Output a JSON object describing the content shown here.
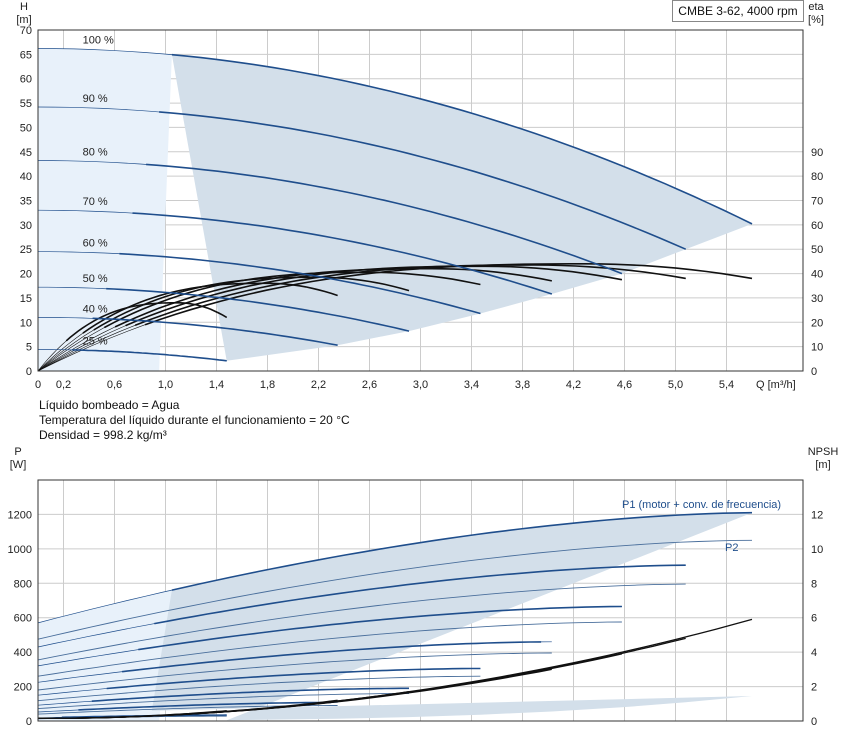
{
  "model_label": "CMBE 3-62, 4000 rpm",
  "notes": {
    "liquid": "Líquido bombeado = Agua",
    "temperature": "Temperatura del líquido durante el funcionamiento = 20 °C",
    "density": "Densidad = 998.2 kg/m³"
  },
  "colors": {
    "curve_blue": "#1f4e8c",
    "region_fill": "#d3dfea",
    "region_light_fill": "#e8f1fa",
    "efficiency_curve": "#111111",
    "grid": "#cccccc",
    "axis": "#333333"
  },
  "chart_data": [
    {
      "type": "line",
      "id": "head",
      "ylabel_left": [
        "H",
        "[m]"
      ],
      "ylabel_right": [
        "eta",
        "[%]"
      ],
      "xlabel": "Q [m³/h]",
      "xlim": [
        0,
        6.0
      ],
      "ylim_left": [
        0,
        70
      ],
      "ylim_right": [
        0,
        140
      ],
      "x_ticks": [
        0,
        0.2,
        0.6,
        1.0,
        1.4,
        1.8,
        2.2,
        2.6,
        3.0,
        3.4,
        3.8,
        4.2,
        4.6,
        5.0,
        5.4
      ],
      "x_tick_labels": [
        "0",
        "0,2",
        "0,6",
        "1,0",
        "1,4",
        "1,8",
        "2,2",
        "2,6",
        "3,0",
        "3,4",
        "3,8",
        "4,2",
        "4,6",
        "5,0",
        "5,4"
      ],
      "y_ticks_left": [
        0,
        5,
        10,
        15,
        20,
        25,
        30,
        35,
        40,
        45,
        50,
        55,
        60,
        65,
        70
      ],
      "y_tick_labels_left": [
        "0",
        "5",
        "10",
        "15",
        "20",
        "25",
        "30",
        "35",
        "40",
        "45",
        "50",
        "55",
        "60",
        "65",
        "70"
      ],
      "y_ticks_right": [
        0,
        10,
        20,
        30,
        40,
        50,
        60,
        70,
        80,
        90
      ],
      "y_tick_labels_right": [
        "0",
        "10",
        "20",
        "30",
        "40",
        "50",
        "60",
        "70",
        "80",
        "90"
      ],
      "grid": true,
      "speed_curves": [
        {
          "name": "100 %",
          "h0": 66.2,
          "qmax": 5.6,
          "hend": 30.2
        },
        {
          "name": "90 %",
          "h0": 54.2,
          "qmax": 5.08,
          "hend": 25.0
        },
        {
          "name": "80 %",
          "h0": 43.2,
          "qmax": 4.58,
          "hend": 20.0
        },
        {
          "name": "70 %",
          "h0": 33.0,
          "qmax": 4.03,
          "hend": 15.8
        },
        {
          "name": "60 %",
          "h0": 24.5,
          "qmax": 3.47,
          "hend": 11.8
        },
        {
          "name": "50 %",
          "h0": 17.2,
          "qmax": 2.91,
          "hend": 8.2
        },
        {
          "name": "40 %",
          "h0": 11.0,
          "qmax": 2.35,
          "hend": 5.3
        },
        {
          "name": "25 %",
          "h0": 4.4,
          "qmax": 1.48,
          "hend": 2.1
        }
      ],
      "operating_region": {
        "boundary_q": [
          1.05,
          1.48,
          2.35,
          2.91,
          3.47,
          4.03,
          4.58,
          5.08,
          5.6
        ],
        "boundary_h": [
          63.5,
          2.1,
          5.3,
          8.2,
          11.8,
          15.8,
          20.0,
          25.0,
          30.2
        ]
      },
      "efficiency_curves_eta_percent": [
        {
          "qmax": 5.6,
          "eta_peak": 44,
          "q_peak": 4.3,
          "eta_end": 38
        },
        {
          "qmax": 5.08,
          "eta_peak": 43.5,
          "q_peak": 3.9,
          "eta_end": 38
        },
        {
          "qmax": 4.58,
          "eta_peak": 43,
          "q_peak": 3.5,
          "eta_end": 37.5
        },
        {
          "qmax": 4.03,
          "eta_peak": 42,
          "q_peak": 3.1,
          "eta_end": 37
        },
        {
          "qmax": 3.47,
          "eta_peak": 40.5,
          "q_peak": 2.6,
          "eta_end": 35.5
        },
        {
          "qmax": 2.91,
          "eta_peak": 38.5,
          "q_peak": 2.2,
          "eta_end": 33
        },
        {
          "qmax": 2.35,
          "eta_peak": 36,
          "q_peak": 1.8,
          "eta_end": 31
        },
        {
          "qmax": 1.48,
          "eta_peak": 28,
          "q_peak": 1.1,
          "eta_end": 22
        }
      ]
    },
    {
      "type": "line",
      "id": "power",
      "ylabel_left": [
        "P",
        "[W]"
      ],
      "ylabel_right": [
        "NPSH",
        "[m]"
      ],
      "xlim": [
        0,
        6.0
      ],
      "ylim_left": [
        0,
        1400
      ],
      "ylim_right": [
        0,
        14
      ],
      "y_ticks_left": [
        0,
        200,
        400,
        600,
        800,
        1000,
        1200
      ],
      "y_tick_labels_left": [
        "0",
        "200",
        "400",
        "600",
        "800",
        "1000",
        "1200"
      ],
      "y_ticks_right": [
        0,
        2,
        4,
        6,
        8,
        10,
        12
      ],
      "y_tick_labels_right": [
        "0",
        "2",
        "4",
        "6",
        "8",
        "10",
        "12"
      ],
      "grid": true,
      "series_labels": {
        "p1": "P1 (motor + conv. de frecuencia)",
        "p2": "P2"
      },
      "p1_curves": [
        {
          "p0": 570,
          "qmax": 5.6,
          "pend": 1210
        },
        {
          "p0": 430,
          "qmax": 5.08,
          "pend": 905
        },
        {
          "p0": 320,
          "qmax": 4.58,
          "pend": 665
        },
        {
          "p0": 225,
          "qmax": 4.03,
          "pend": 460
        },
        {
          "p0": 150,
          "qmax": 3.47,
          "pend": 305
        },
        {
          "p0": 92,
          "qmax": 2.91,
          "pend": 190
        },
        {
          "p0": 52,
          "qmax": 2.35,
          "pend": 108
        },
        {
          "p0": 18,
          "qmax": 1.48,
          "pend": 34
        }
      ],
      "p2_curves": [
        {
          "p0": 475,
          "qmax": 5.6,
          "pend": 1050
        },
        {
          "p0": 355,
          "qmax": 5.08,
          "pend": 795
        },
        {
          "p0": 260,
          "qmax": 4.58,
          "pend": 575
        },
        {
          "p0": 180,
          "qmax": 4.03,
          "pend": 395
        },
        {
          "p0": 118,
          "qmax": 3.47,
          "pend": 260
        },
        {
          "p0": 72,
          "qmax": 2.91,
          "pend": 160
        },
        {
          "p0": 40,
          "qmax": 2.35,
          "pend": 90
        },
        {
          "p0": 13,
          "qmax": 1.48,
          "pend": 28
        }
      ],
      "npsh_curves_m": [
        {
          "qmax": 5.6,
          "npsh_end": 5.9
        },
        {
          "qmax": 5.08,
          "npsh_end": 4.8
        },
        {
          "qmax": 4.58,
          "npsh_end": 3.9
        },
        {
          "qmax": 4.03,
          "npsh_end": 3.0
        },
        {
          "qmax": 3.47,
          "npsh_end": 2.3
        },
        {
          "qmax": 2.91,
          "npsh_end": 1.7
        },
        {
          "qmax": 2.35,
          "npsh_end": 1.2
        },
        {
          "qmax": 1.48,
          "npsh_end": 0.6
        }
      ]
    }
  ]
}
